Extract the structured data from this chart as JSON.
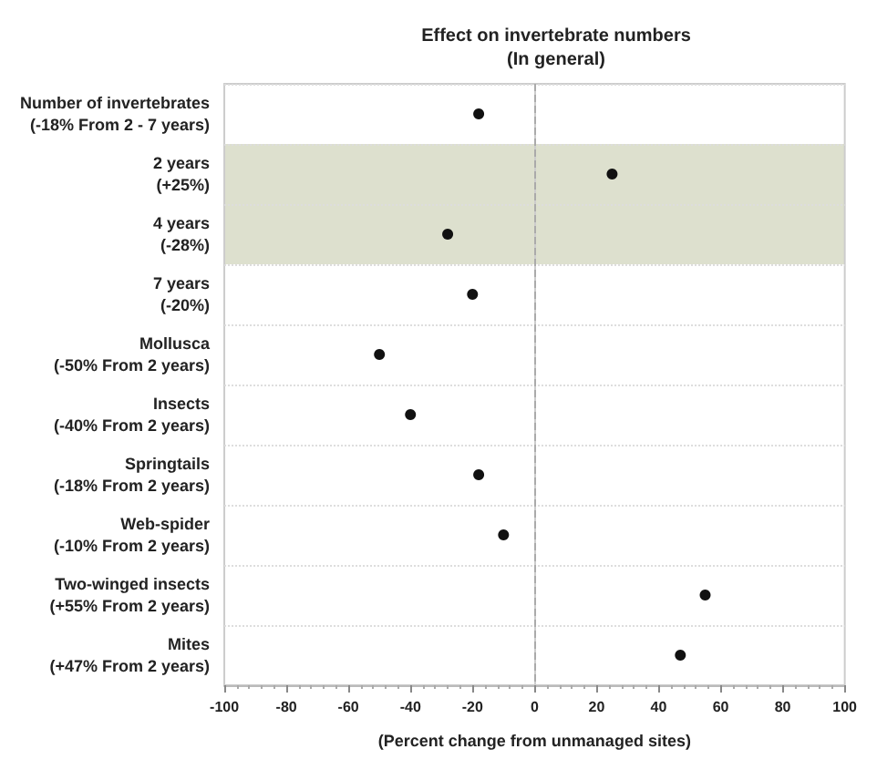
{
  "chart_data": {
    "type": "scatter",
    "orientation": "horizontal",
    "title": "Effect on invertebrate numbers",
    "subtitle": "(In general)",
    "xlabel": "(Percent change from unmanaged sites)",
    "categories": [
      "Number of invertebrates\n(-18% From 2 - 7 years)",
      "2 years\n(+25%)",
      "4 years\n(-28%)",
      "7 years\n(-20%)",
      "Mollusca\n(-50% From 2 years)",
      "Insects\n(-40% From 2 years)",
      "Springtails\n(-18% From 2 years)",
      "Web-spider\n(-10% From 2 years)",
      "Two-winged insects\n(+55% From 2 years)",
      "Mites\n(+47% From 2 years)"
    ],
    "values": [
      -18,
      25,
      -28,
      -20,
      -50,
      -40,
      -18,
      -10,
      55,
      47
    ],
    "color": "#111111",
    "marker": "circle",
    "xlim": [
      -100,
      100
    ],
    "xticks": [
      -100,
      -80,
      -60,
      -40,
      -20,
      0,
      20,
      40,
      60,
      80,
      100
    ],
    "grid": "y",
    "ref_lines": [
      {
        "axis": "x",
        "value": 0,
        "color": "#aaaaaa",
        "line_style": "dashed"
      }
    ],
    "bands": [
      {
        "axis": "y",
        "from": "2 years\n(+25%)",
        "to": "4 years\n(-28%)",
        "color": "#dde0ce"
      }
    ]
  }
}
